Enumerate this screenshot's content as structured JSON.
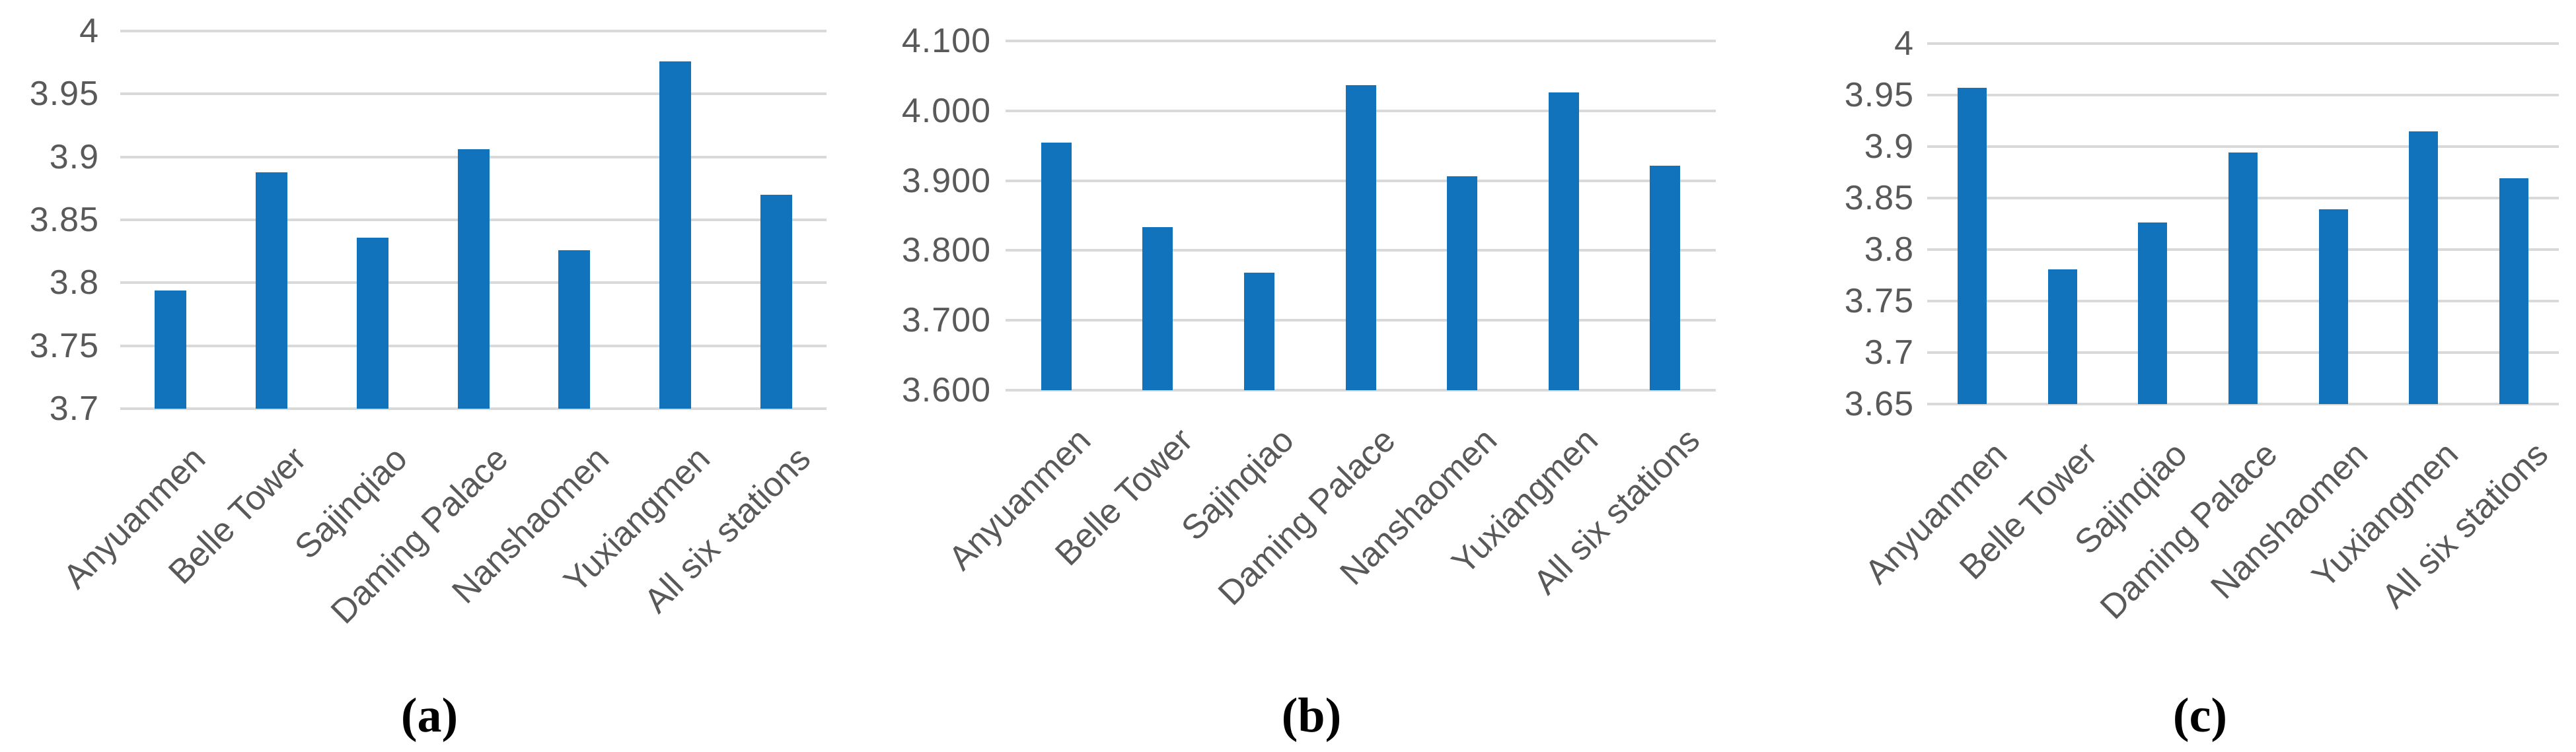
{
  "figure": {
    "background": "#ffffff",
    "bar_color": "#1173BC",
    "gridline_color": "#D9D9D9",
    "axis_label_color": "#595959",
    "caption_color": "#000000",
    "grid": true,
    "legend": "none"
  },
  "chart_data": [
    {
      "type": "bar",
      "caption": "(a)",
      "categories": [
        "Anyuanmen",
        "Belle Tower",
        "Sajinqiao",
        "Daming Palace",
        "Nanshaomen",
        "Yuxiangmen",
        "All six stations"
      ],
      "values": [
        3.794,
        3.888,
        3.836,
        3.906,
        3.826,
        3.976,
        3.87
      ],
      "ylim": [
        3.7,
        4.0
      ],
      "ytick_values": [
        3.7,
        3.75,
        3.8,
        3.85,
        3.9,
        3.95,
        4.0
      ],
      "ytick_labels": [
        "3.7",
        "3.75",
        "3.8",
        "3.85",
        "3.9",
        "3.95",
        "4"
      ],
      "xlabel": "",
      "ylabel": ""
    },
    {
      "type": "bar",
      "caption": "(b)",
      "categories": [
        "Anyuanmen",
        "Belle Tower",
        "Sajinqiao",
        "Daming Palace",
        "Nanshaomen",
        "Yuxiangmen",
        "All six stations"
      ],
      "values": [
        3.954,
        3.833,
        3.768,
        4.037,
        3.906,
        4.026,
        3.921
      ],
      "ylim": [
        3.6,
        4.1
      ],
      "ytick_values": [
        3.6,
        3.7,
        3.8,
        3.9,
        4.0,
        4.1
      ],
      "ytick_labels": [
        "3.600",
        "3.700",
        "3.800",
        "3.900",
        "4.000",
        "4.100"
      ],
      "xlabel": "",
      "ylabel": ""
    },
    {
      "type": "bar",
      "caption": "(c)",
      "categories": [
        "Anyuanmen",
        "Belle Tower",
        "Sajinqiao",
        "Daming Palace",
        "Nanshaomen",
        "Yuxiangmen",
        "All six stations"
      ],
      "values": [
        3.957,
        3.781,
        3.826,
        3.894,
        3.839,
        3.915,
        3.869
      ],
      "ylim": [
        3.65,
        4.0
      ],
      "ytick_values": [
        3.65,
        3.7,
        3.75,
        3.8,
        3.85,
        3.9,
        3.95,
        4.0
      ],
      "ytick_labels": [
        "3.65",
        "3.7",
        "3.75",
        "3.8",
        "3.85",
        "3.9",
        "3.95",
        "4"
      ],
      "xlabel": "",
      "ylabel": ""
    }
  ]
}
